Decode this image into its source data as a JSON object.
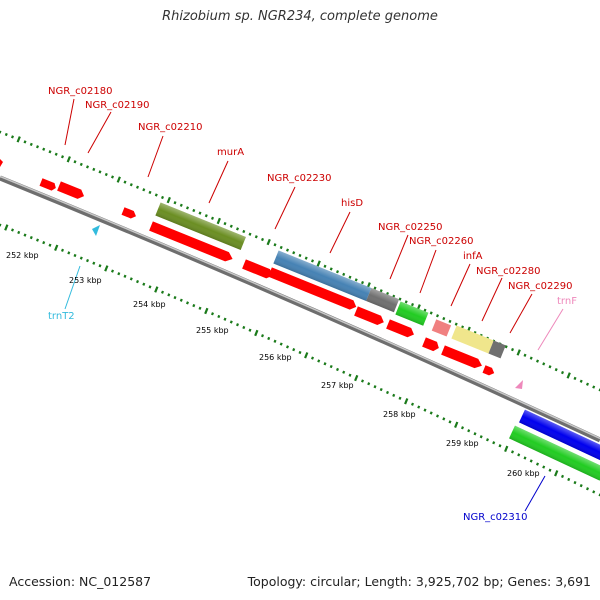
{
  "title": "Rhizobium sp. NGR234, complete genome",
  "footer": {
    "accession": "Accession: NC_012587",
    "topology": "Topology: circular; Length: 3,925,702 bp; Genes: 3,691"
  },
  "colors": {
    "backbone": "#8c8c8c",
    "ticks": "#1a7a1a",
    "label_red": "#cc0000",
    "label_blue": "#0000cc",
    "label_trnT2": "#33bbdd",
    "label_trnF": "#ee88bb"
  },
  "scale_ticks": [
    "252 kbp",
    "253 kbp",
    "254 kbp",
    "255 kbp",
    "256 kbp",
    "257 kbp",
    "258 kbp",
    "259 kbp",
    "260 kbp"
  ],
  "gene_labels": [
    {
      "name": "NGR_c02180",
      "color": "#cc0000"
    },
    {
      "name": "NGR_c02190",
      "color": "#cc0000"
    },
    {
      "name": "NGR_c02210",
      "color": "#cc0000"
    },
    {
      "name": "murA",
      "color": "#cc0000"
    },
    {
      "name": "NGR_c02230",
      "color": "#cc0000"
    },
    {
      "name": "hisD",
      "color": "#cc0000"
    },
    {
      "name": "NGR_c02250",
      "color": "#cc0000"
    },
    {
      "name": "NGR_c02260",
      "color": "#cc0000"
    },
    {
      "name": "infA",
      "color": "#cc0000"
    },
    {
      "name": "NGR_c02280",
      "color": "#cc0000"
    },
    {
      "name": "NGR_c02290",
      "color": "#cc0000"
    },
    {
      "name": "trnT2",
      "color": "#33bbdd"
    },
    {
      "name": "trnF",
      "color": "#ee88bb"
    },
    {
      "name": "NGR_c02310",
      "color": "#0000cc"
    }
  ]
}
